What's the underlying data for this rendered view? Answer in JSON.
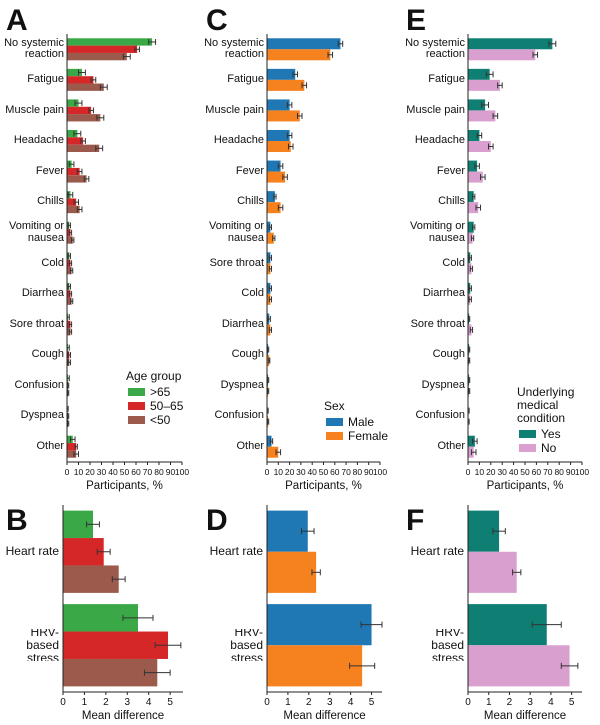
{
  "chart_data": [
    {
      "type": "bar",
      "orientation": "horizontal",
      "label": "A",
      "categories": [
        "No systemic reaction",
        "Fatigue",
        "Muscle pain",
        "Headache",
        "Fever",
        "Chills",
        "Vomiting or nausea",
        "Cold",
        "Diarrhea",
        "Sore throat",
        "Cough",
        "Confusion",
        "Dyspnea",
        "Other"
      ],
      "series": [
        {
          "name": ">65",
          "color": "#3aa846",
          "values": [
            74,
            13,
            10,
            9,
            4,
            3,
            2,
            2,
            2,
            1,
            1,
            1,
            0.5,
            5
          ],
          "errors": [
            3,
            3,
            3,
            3,
            2,
            2,
            1,
            1,
            1,
            1,
            1,
            1,
            0.5,
            2
          ]
        },
        {
          "name": "50–65",
          "color": "#d62728",
          "values": [
            61,
            23,
            21,
            14,
            11,
            8,
            3,
            3,
            3,
            3,
            2,
            1,
            1,
            8
          ],
          "errors": [
            2,
            2,
            2,
            2,
            2,
            2,
            1,
            1,
            1,
            1,
            1,
            0.5,
            0.5,
            1
          ]
        },
        {
          "name": "<50",
          "color": "#9b5a4c",
          "values": [
            52,
            32,
            29,
            28,
            17,
            11,
            5,
            4,
            4,
            3,
            2,
            1,
            1,
            8
          ],
          "errors": [
            3,
            3,
            3,
            3,
            2,
            2,
            1,
            1,
            1,
            1,
            1,
            0.5,
            0.5,
            2
          ]
        }
      ],
      "xlim": [
        0,
        100
      ],
      "xticks": [
        0,
        10,
        20,
        30,
        40,
        50,
        60,
        70,
        80,
        90,
        100
      ],
      "xlabel": "Participants, %",
      "legend_title": "Age group",
      "legend": "lower right"
    },
    {
      "type": "bar",
      "orientation": "horizontal",
      "label": "B",
      "categories": [
        "Heart rate",
        "HRV-based stress"
      ],
      "series": [
        {
          "name": ">65",
          "color": "#3aa846",
          "values": [
            1.4,
            3.5
          ],
          "errors": [
            0.3,
            0.7
          ]
        },
        {
          "name": "50–65",
          "color": "#d62728",
          "values": [
            1.9,
            4.9
          ],
          "errors": [
            0.3,
            0.6
          ]
        },
        {
          "name": "<50",
          "color": "#9b5a4c",
          "values": [
            2.6,
            4.4
          ],
          "errors": [
            0.3,
            0.6
          ]
        }
      ],
      "xlim": [
        0,
        5.6
      ],
      "xticks": [
        0,
        1,
        2,
        3,
        4,
        5
      ],
      "xlabel": "Mean difference"
    },
    {
      "type": "bar",
      "orientation": "horizontal",
      "label": "C",
      "categories": [
        "No systemic reaction",
        "Fatigue",
        "Muscle pain",
        "Headache",
        "Fever",
        "Chills",
        "Vomiting or nausea",
        "Sore throat",
        "Cold",
        "Diarrhea",
        "Cough",
        "Dyspnea",
        "Confusion",
        "Other"
      ],
      "series": [
        {
          "name": "Male",
          "color": "#1f77b4",
          "values": [
            65,
            25,
            20,
            20,
            12,
            7,
            3,
            3,
            3,
            2,
            1,
            1,
            0.5,
            4
          ],
          "errors": [
            2,
            2,
            2,
            2,
            2,
            1,
            1,
            1,
            1,
            1,
            0.5,
            0.5,
            0.5,
            1
          ]
        },
        {
          "name": "Female",
          "color": "#f5821f",
          "values": [
            56,
            33,
            29,
            21,
            16,
            12,
            6,
            3,
            3,
            3,
            2,
            1,
            1,
            10
          ],
          "errors": [
            2,
            2,
            2,
            2,
            2,
            2,
            1,
            1,
            1,
            1,
            0.5,
            0.5,
            0.5,
            2
          ]
        }
      ],
      "xlim": [
        0,
        100
      ],
      "xticks": [
        0,
        10,
        20,
        30,
        40,
        50,
        60,
        70,
        80,
        90,
        100
      ],
      "xlabel": "Participants, %",
      "legend_title": "Sex",
      "legend": "lower right"
    },
    {
      "type": "bar",
      "orientation": "horizontal",
      "label": "D",
      "categories": [
        "Heart rate",
        "HRV-based stress"
      ],
      "series": [
        {
          "name": "Male",
          "color": "#1f77b4",
          "values": [
            1.95,
            5.0
          ],
          "errors": [
            0.3,
            0.5
          ]
        },
        {
          "name": "Female",
          "color": "#f5821f",
          "values": [
            2.35,
            4.55
          ],
          "errors": [
            0.2,
            0.6
          ]
        }
      ],
      "xlim": [
        0,
        5.5
      ],
      "xticks": [
        0,
        1,
        2,
        3,
        4,
        5
      ],
      "xlabel": "Mean difference"
    },
    {
      "type": "bar",
      "orientation": "horizontal",
      "label": "E",
      "categories": [
        "No systemic reaction",
        "Fatigue",
        "Muscle pain",
        "Headache",
        "Fever",
        "Chills",
        "Vomiting or nausea",
        "Cold",
        "Diarrhea",
        "Sore throat",
        "Cough",
        "Dyspnea",
        "Confusion",
        "Other"
      ],
      "series": [
        {
          "name": "Yes",
          "color": "#0e7f72",
          "values": [
            74,
            19,
            15,
            10,
            8,
            5,
            5,
            2,
            2,
            1,
            1,
            1,
            0.5,
            6
          ],
          "errors": [
            3,
            3,
            3,
            2,
            2,
            1,
            1,
            1,
            1,
            0.5,
            0.5,
            0.5,
            0.5,
            2
          ]
        },
        {
          "name": "No",
          "color": "#d9a0cf",
          "values": [
            59,
            28,
            24,
            20,
            13,
            9,
            4,
            3,
            2,
            3,
            1,
            1,
            0.5,
            5
          ],
          "errors": [
            2,
            2,
            2,
            2,
            2,
            2,
            1,
            1,
            1,
            1,
            0.5,
            0.5,
            0.5,
            2
          ]
        }
      ],
      "xlim": [
        0,
        100
      ],
      "xticks": [
        0,
        10,
        20,
        30,
        40,
        50,
        60,
        70,
        80,
        90,
        100
      ],
      "xlabel": "Participants, %",
      "legend_title": "Underlying medical condition",
      "legend": "lower right"
    },
    {
      "type": "bar",
      "orientation": "horizontal",
      "label": "F",
      "categories": [
        "Heart rate",
        "HRV-based stress"
      ],
      "series": [
        {
          "name": "Yes",
          "color": "#0e7f72",
          "values": [
            1.5,
            3.8
          ],
          "errors": [
            0.3,
            0.7
          ]
        },
        {
          "name": "No",
          "color": "#d9a0cf",
          "values": [
            2.35,
            4.9
          ],
          "errors": [
            0.2,
            0.4
          ]
        }
      ],
      "xlim": [
        0,
        5.5
      ],
      "xticks": [
        0,
        1,
        2,
        3,
        4,
        5
      ],
      "xlabel": "Mean difference"
    }
  ]
}
